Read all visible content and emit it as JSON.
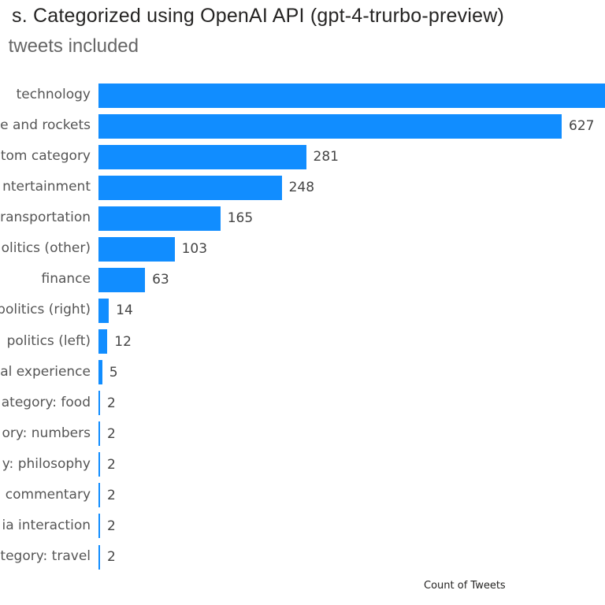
{
  "chart_data": {
    "type": "bar",
    "orientation": "horizontal",
    "title": "s. Categorized using OpenAI API (gpt-4-trurbo-preview)",
    "subtitle": "tweets included",
    "xlabel": "Count of Tweets",
    "ylabel": "",
    "bar_color": "#118DFF",
    "grid": false,
    "categories": [
      "technology",
      "e and rockets",
      "tom category",
      "ntertainment",
      "ransportation",
      "olitics (other)",
      "finance",
      "politics (right)",
      "politics (left)",
      "al experience",
      "ategory: food",
      "ory: numbers",
      "y: philosophy",
      "commentary",
      "ia interaction",
      "tegory: travel"
    ],
    "values": [
      null,
      627,
      281,
      248,
      165,
      103,
      63,
      14,
      12,
      5,
      2,
      2,
      2,
      2,
      2,
      2
    ]
  }
}
